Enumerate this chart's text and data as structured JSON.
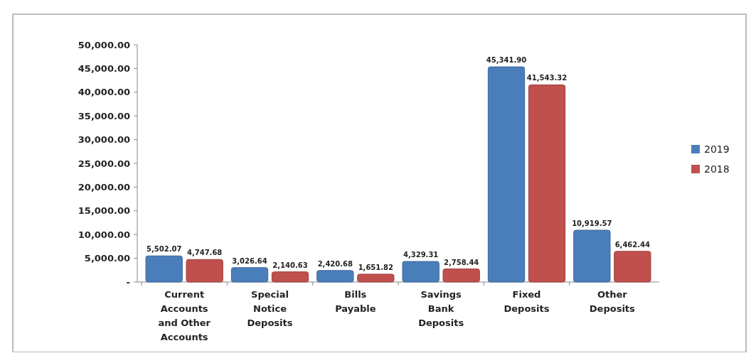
{
  "chart_data": {
    "type": "bar",
    "categories": [
      "Current Accounts and Other Accounts",
      "Special Notice Deposits",
      "Bills Payable",
      "Savings Bank Deposits",
      "Fixed Deposits",
      "Other Deposits"
    ],
    "series": [
      {
        "name": "2019",
        "color": "#4a7ebb",
        "values": [
          5502.07,
          3026.64,
          2420.68,
          4329.31,
          45341.9,
          10919.57
        ],
        "value_labels": [
          "5,502.07",
          "3,026.64",
          "2,420.68",
          "4,329.31",
          "45,341.90",
          "10,919.57"
        ]
      },
      {
        "name": "2018",
        "color": "#c0504d",
        "values": [
          4747.68,
          2140.63,
          1651.82,
          2758.44,
          41543.32,
          6462.44
        ],
        "value_labels": [
          "4,747.68",
          "2,140.63",
          "1,651.82",
          "2,758.44",
          "41,543.32",
          "6,462.44"
        ]
      }
    ],
    "ylim": [
      0,
      50000
    ],
    "yticks": [
      {
        "value": 0,
        "label": "-"
      },
      {
        "value": 5000,
        "label": "5,000.00"
      },
      {
        "value": 10000,
        "label": "10,000.00"
      },
      {
        "value": 15000,
        "label": "15,000.00"
      },
      {
        "value": 20000,
        "label": "20,000.00"
      },
      {
        "value": 25000,
        "label": "25,000.00"
      },
      {
        "value": 30000,
        "label": "30,000.00"
      },
      {
        "value": 35000,
        "label": "35,000.00"
      },
      {
        "value": 40000,
        "label": "40,000.00"
      },
      {
        "value": 45000,
        "label": "45,000.00"
      },
      {
        "value": 50000,
        "label": "50,000.00"
      }
    ],
    "legend": "right",
    "grid": false
  }
}
